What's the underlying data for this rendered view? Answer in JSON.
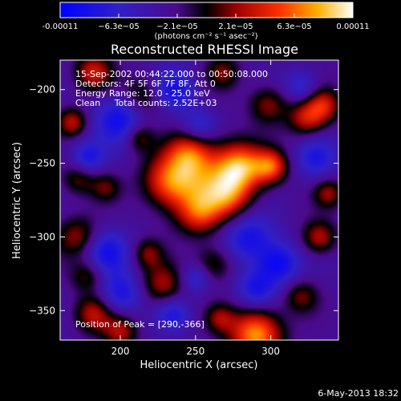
{
  "chart_data": {
    "type": "heatmap",
    "title": "Reconstructed RHESSI Image",
    "xlabel": "Heliocentric X (arcsec)",
    "ylabel": "Heliocentric Y (arcsec)",
    "xlim": [
      160,
      345
    ],
    "ylim": [
      -370,
      -180
    ],
    "xticks": [
      200,
      250,
      300
    ],
    "yticks": [
      -200,
      -250,
      -300,
      -350
    ],
    "colorbar": {
      "ticks": [
        "-0.00011",
        "−6.3e−05",
        "−2.1e−05",
        "2.1e−05",
        "6.3e−05",
        "0.00011"
      ],
      "unit_label": "(photons cm⁻² s⁻¹ asec⁻²)",
      "range": [
        -0.00011,
        0.00011
      ]
    },
    "header_lines": [
      "15-Sep-2002 00:44:22.000 to 00:50:08.000",
      "Detectors: 4F 5F 6F 7F 8F, Att 0",
      "Energy Range: 12.0 - 25.0 keV",
      "Clean     Total counts: 2.52E+03"
    ],
    "peak_label": "Position of Peak = [290,-366]",
    "peak": [
      290,
      -366
    ],
    "date_stamp": "6-May-2013 18:32",
    "blobs": [
      {
        "x": 290,
        "y": -366,
        "v": 1.0,
        "s": 12
      },
      {
        "x": 280,
        "y": -252,
        "v": 0.85,
        "s": 11
      },
      {
        "x": 300,
        "y": -252,
        "v": 0.75,
        "s": 8
      },
      {
        "x": 255,
        "y": -262,
        "v": 0.7,
        "s": 18
      },
      {
        "x": 232,
        "y": -262,
        "v": 0.65,
        "s": 12
      },
      {
        "x": 245,
        "y": -243,
        "v": 0.55,
        "s": 10
      },
      {
        "x": 272,
        "y": -272,
        "v": 0.55,
        "s": 11
      },
      {
        "x": 252,
        "y": -284,
        "v": 0.5,
        "s": 10
      },
      {
        "x": 324,
        "y": -219,
        "v": 0.6,
        "s": 9
      },
      {
        "x": 335,
        "y": -210,
        "v": 0.55,
        "s": 8
      },
      {
        "x": 182,
        "y": -188,
        "v": 0.6,
        "s": 9
      },
      {
        "x": 168,
        "y": -222,
        "v": 0.55,
        "s": 7
      },
      {
        "x": 215,
        "y": -205,
        "v": 0.45,
        "s": 10
      },
      {
        "x": 212,
        "y": -232,
        "v": 0.45,
        "s": 7
      },
      {
        "x": 298,
        "y": -210,
        "v": 0.45,
        "s": 9
      },
      {
        "x": 268,
        "y": -188,
        "v": 0.4,
        "s": 8
      },
      {
        "x": 332,
        "y": -300,
        "v": 0.55,
        "s": 8
      },
      {
        "x": 338,
        "y": -270,
        "v": 0.45,
        "s": 7
      },
      {
        "x": 172,
        "y": -300,
        "v": 0.5,
        "s": 10
      },
      {
        "x": 178,
        "y": -326,
        "v": 0.4,
        "s": 8
      },
      {
        "x": 182,
        "y": -352,
        "v": 0.55,
        "s": 9
      },
      {
        "x": 200,
        "y": -364,
        "v": 0.5,
        "s": 8
      },
      {
        "x": 228,
        "y": -332,
        "v": 0.5,
        "s": 10
      },
      {
        "x": 218,
        "y": -311,
        "v": 0.4,
        "s": 7
      },
      {
        "x": 262,
        "y": -318,
        "v": 0.4,
        "s": 9
      },
      {
        "x": 266,
        "y": -355,
        "v": 0.4,
        "s": 7
      },
      {
        "x": 320,
        "y": -340,
        "v": 0.4,
        "s": 8
      },
      {
        "x": 172,
        "y": -260,
        "v": 0.4,
        "s": 8
      },
      {
        "x": 190,
        "y": -266,
        "v": 0.35,
        "s": 7
      },
      {
        "x": 200,
        "y": -220,
        "v": -0.6,
        "s": 12
      },
      {
        "x": 235,
        "y": -200,
        "v": -0.55,
        "s": 10
      },
      {
        "x": 178,
        "y": -246,
        "v": -0.5,
        "s": 8
      },
      {
        "x": 190,
        "y": -310,
        "v": -0.55,
        "s": 11
      },
      {
        "x": 200,
        "y": -338,
        "v": -0.5,
        "s": 10
      },
      {
        "x": 235,
        "y": -352,
        "v": -0.45,
        "s": 8
      },
      {
        "x": 285,
        "y": -300,
        "v": -0.55,
        "s": 12
      },
      {
        "x": 305,
        "y": -318,
        "v": -0.6,
        "s": 10
      },
      {
        "x": 290,
        "y": -335,
        "v": -0.5,
        "s": 9
      },
      {
        "x": 330,
        "y": -246,
        "v": -0.45,
        "s": 10
      },
      {
        "x": 252,
        "y": -224,
        "v": -0.4,
        "s": 8
      },
      {
        "x": 320,
        "y": -198,
        "v": -0.4,
        "s": 8
      },
      {
        "x": 250,
        "y": -328,
        "v": -0.4,
        "s": 7
      }
    ]
  }
}
